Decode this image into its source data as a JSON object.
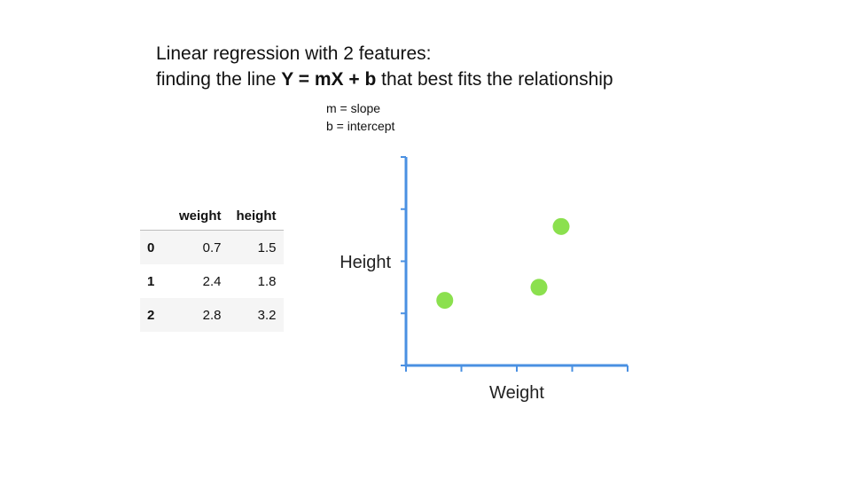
{
  "title": {
    "line1": "Linear regression with 2 features:",
    "line2_prefix": "finding the line ",
    "line2_equation": "Y = mX + b",
    "line2_suffix": " that best fits the relationship"
  },
  "definitions": {
    "slope": "m = slope",
    "intercept": "b = intercept"
  },
  "table": {
    "columns": [
      "weight",
      "height"
    ],
    "rows": [
      {
        "index": "0",
        "weight": "0.7",
        "height": "1.5"
      },
      {
        "index": "1",
        "weight": "2.4",
        "height": "1.8"
      },
      {
        "index": "2",
        "weight": "2.8",
        "height": "3.2"
      }
    ]
  },
  "chart_data": {
    "type": "scatter",
    "xlabel": "Weight",
    "ylabel": "Height",
    "x": [
      0.7,
      2.4,
      2.8
    ],
    "y": [
      1.5,
      1.8,
      3.2
    ],
    "xlim": [
      0,
      4
    ],
    "ylim": [
      0,
      4.8
    ],
    "axis_color": "#4a90e2",
    "point_color": "#8be04e"
  }
}
